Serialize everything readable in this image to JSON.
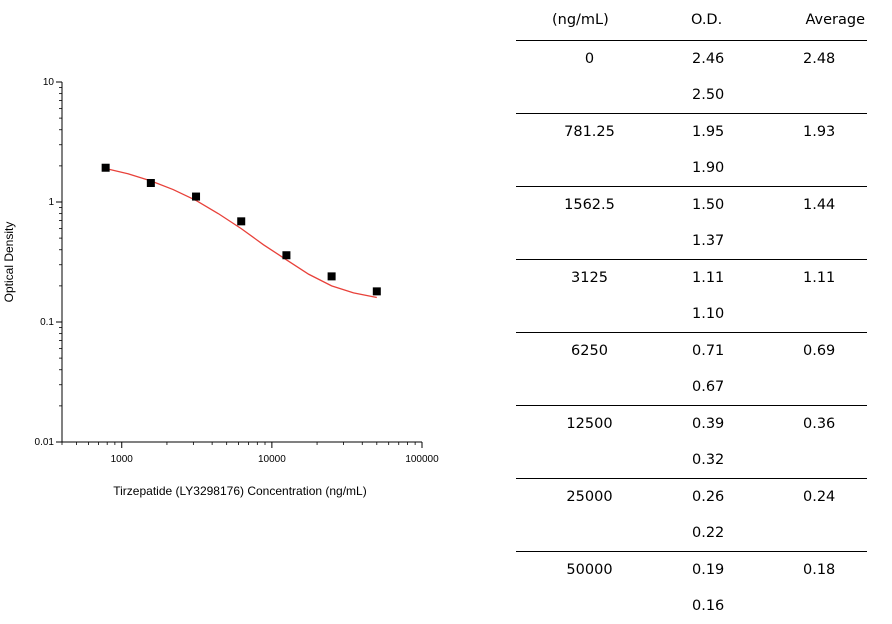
{
  "chart_data": {
    "type": "scatter",
    "title": "",
    "xlabel": "Tirzepatide (LY3298176) Concentration (ng/mL)",
    "ylabel": "Optical Density",
    "x_scale": "log",
    "y_scale": "log",
    "xlim": [
      400,
      100000
    ],
    "ylim": [
      0.01,
      10
    ],
    "x_ticks": [
      1000,
      10000,
      100000
    ],
    "x_tick_labels": [
      "1000",
      "10000",
      "100000"
    ],
    "y_ticks": [
      0.01,
      0.1,
      1,
      10
    ],
    "y_tick_labels": [
      "0.01",
      "0.1",
      "1",
      "10"
    ],
    "grid": false,
    "series": [
      {
        "x": [
          781.25,
          1562.5,
          3125,
          6250,
          12500,
          25000,
          50000
        ],
        "y": [
          1.93,
          1.44,
          1.11,
          0.69,
          0.36,
          0.24,
          0.18
        ],
        "marker": "square",
        "color": "#000000"
      }
    ],
    "fit_curve": {
      "color": "#e8413a",
      "x": [
        781.25,
        1100,
        1562.5,
        2200,
        3125,
        4400,
        6250,
        8800,
        12500,
        17600,
        25000,
        35000,
        50000
      ],
      "y": [
        1.9,
        1.72,
        1.5,
        1.27,
        1.03,
        0.8,
        0.6,
        0.44,
        0.33,
        0.25,
        0.2,
        0.175,
        0.16
      ]
    }
  },
  "table": {
    "headers": [
      "(ng/mL)",
      "O.D.",
      "Average"
    ],
    "rows": [
      {
        "conc": "0",
        "od": [
          "2.46",
          "2.50"
        ],
        "avg": "2.48"
      },
      {
        "conc": "781.25",
        "od": [
          "1.95",
          "1.90"
        ],
        "avg": "1.93"
      },
      {
        "conc": "1562.5",
        "od": [
          "1.50",
          "1.37"
        ],
        "avg": "1.44"
      },
      {
        "conc": "3125",
        "od": [
          "1.11",
          "1.10"
        ],
        "avg": "1.11"
      },
      {
        "conc": "6250",
        "od": [
          "0.71",
          "0.67"
        ],
        "avg": "0.69"
      },
      {
        "conc": "12500",
        "od": [
          "0.39",
          "0.32"
        ],
        "avg": "0.36"
      },
      {
        "conc": "25000",
        "od": [
          "0.26",
          "0.22"
        ],
        "avg": "0.24"
      },
      {
        "conc": "50000",
        "od": [
          "0.19",
          "0.16"
        ],
        "avg": "0.18"
      }
    ]
  }
}
